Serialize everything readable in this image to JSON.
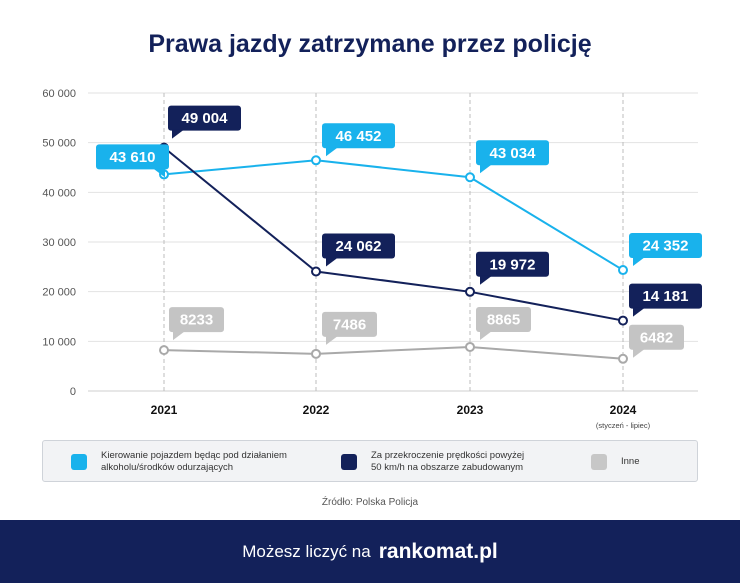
{
  "title": "Prawa jazdy zatrzymane przez policję",
  "chart_data": {
    "type": "line",
    "title": "Prawa jazdy zatrzymane przez policję",
    "x": [
      "2021",
      "2022",
      "2023",
      "2024"
    ],
    "x_sublabels": [
      "",
      "",
      "",
      "(styczeń - lipiec)"
    ],
    "ylim": [
      0,
      60000
    ],
    "yticks": [
      0,
      10000,
      20000,
      30000,
      40000,
      50000,
      60000
    ],
    "ytick_labels": [
      "0",
      "10 000",
      "20 000",
      "30 000",
      "40 000",
      "50 000",
      "60 000"
    ],
    "grid": true,
    "series": [
      {
        "name": "Kierowanie pojazdem będąc pod działaniem alkoholu/środków odurzających",
        "color": "#19b2ec",
        "values": [
          43610,
          46452,
          43034,
          24352
        ],
        "labels": [
          "43 610",
          "46 452",
          "43 034",
          "24 352"
        ]
      },
      {
        "name": "Za przekroczenie prędkości powyżej 50 km/h na obszarze zabudowanym",
        "color": "#13215a",
        "values": [
          49004,
          24062,
          19972,
          14181
        ],
        "labels": [
          "49 004",
          "24 062",
          "19 972",
          "14 181"
        ]
      },
      {
        "name": "Inne",
        "color": "#a9a9a9",
        "values": [
          8233,
          7486,
          8865,
          6482
        ],
        "labels": [
          "8233",
          "7486",
          "8865",
          "6482"
        ]
      }
    ]
  },
  "legend": {
    "items": [
      {
        "line1": "Kierowanie pojazdem będąc pod działaniem",
        "line2": "alkoholu/środków odurzających",
        "color": "#19b2ec"
      },
      {
        "line1": "Za przekroczenie prędkości powyżej",
        "line2": "50 km/h na obszarze zabudowanym",
        "color": "#13215a"
      },
      {
        "line1": "Inne",
        "line2": "",
        "color": "#c7c7c7"
      }
    ]
  },
  "source": "Źródło: Polska Policja",
  "footer": {
    "slogan": "Możesz liczyć na",
    "brand": "rankomat.pl"
  }
}
